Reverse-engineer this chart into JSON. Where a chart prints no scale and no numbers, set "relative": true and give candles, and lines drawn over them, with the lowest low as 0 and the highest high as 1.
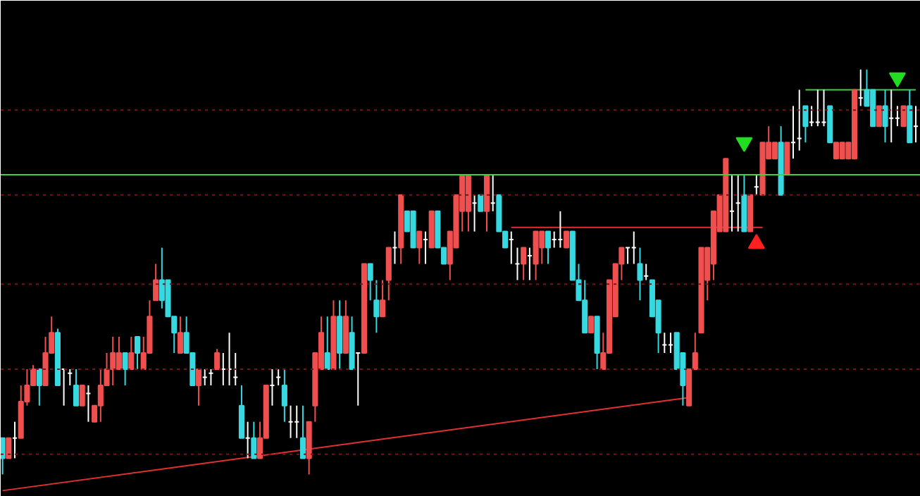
{
  "chart_data": {
    "type": "candlestick",
    "relative": true,
    "colors": [
      "#37d8e0",
      "#ef4f4f",
      "#ffffff",
      "#ef4f4f",
      "#ef4f4f",
      "#ef4f4f",
      "#37d8e0",
      "#ef4f4f",
      "#ef4f4f",
      "#37d8e0",
      "#ffffff",
      "#ffffff",
      "#37d8e0",
      "#ef4f4f",
      "#ffffff",
      "#ef4f4f",
      "#ef4f4f",
      "#ef4f4f",
      "#ef4f4f",
      "#ef4f4f",
      "#37d8e0",
      "#ef4f4f",
      "#37d8e0",
      "#ef4f4f",
      "#ef4f4f",
      "#ef4f4f",
      "#37d8e0",
      "#37d8e0",
      "#37d8e0",
      "#ef4f4f",
      "#37d8e0",
      "#37d8e0",
      "#ef4f4f",
      "#ffffff",
      "#ffffff",
      "#ef4f4f",
      "#ffffff",
      "#ffffff",
      "#ffffff",
      "#37d8e0",
      "#ffffff",
      "#37d8e0",
      "#ef4f4f",
      "#ef4f4f",
      "#ffffff",
      "#ffffff",
      "#37d8e0",
      "#ffffff",
      "#ffffff",
      "#37d8e0",
      "#ef4f4f",
      "#ef4f4f",
      "#ef4f4f",
      "#37d8e0",
      "#ef4f4f",
      "#37d8e0",
      "#ef4f4f",
      "#37d8e0",
      "#ffffff",
      "#ef4f4f",
      "#37d8e0",
      "#37d8e0",
      "#ef4f4f",
      "#ef4f4f",
      "#ffffff",
      "#ef4f4f",
      "#37d8e0",
      "#37d8e0",
      "#ef4f4f",
      "#ffffff",
      "#ef4f4f",
      "#37d8e0",
      "#37d8e0",
      "#ef4f4f",
      "#ef4f4f",
      "#ef4f4f",
      "#ef4f4f",
      "#ffffff",
      "#37d8e0",
      "#ef4f4f",
      "#ffffff",
      "#37d8e0",
      "#37d8e0",
      "#ffffff",
      "#ffffff",
      "#ef4f4f",
      "#ffffff",
      "#ef4f4f",
      "#ef4f4f",
      "#37d8e0",
      "#ffffff",
      "#ffffff",
      "#ef4f4f",
      "#37d8e0",
      "#37d8e0",
      "#37d8e0",
      "#ef4f4f",
      "#37d8e0",
      "#ef4f4f",
      "#ef4f4f",
      "#ef4f4f",
      "#ef4f4f",
      "#ffffff",
      "#ffffff",
      "#37d8e0",
      "#ffffff",
      "#37d8e0",
      "#37d8e0",
      "#ffffff",
      "#ffffff",
      "#37d8e0",
      "#37d8e0",
      "#ef4f4f",
      "#ef4f4f",
      "#ef4f4f",
      "#ef4f4f",
      "#ef4f4f",
      "#ef4f4f",
      "#ef4f4f",
      "#ffffff",
      "#ffffff",
      "#37d8e0",
      "#ef4f4f",
      "#ffffff",
      "#ef4f4f",
      "#ef4f4f",
      "#ef4f4f",
      "#37d8e0",
      "#ef4f4f",
      "#ffffff",
      "#ffffff",
      "#37d8e0",
      "#ffffff",
      "#ffffff",
      "#ffffff",
      "#37d8e0",
      "#ef4f4f",
      "#ef4f4f",
      "#ef4f4f",
      "#ef4f4f",
      "#ffffff",
      "#37d8e0",
      "#37d8e0",
      "#ef4f4f",
      "#37d8e0",
      "#ffffff",
      "#ffffff",
      "#ef4f4f",
      "#37d8e0",
      "#ffffff"
    ],
    "categories": [
      null,
      null,
      null,
      null,
      null,
      null,
      null,
      null,
      null,
      null,
      null,
      null,
      null,
      null,
      null,
      null,
      null,
      null,
      null,
      null,
      null,
      null,
      null,
      null,
      null,
      null,
      null,
      null,
      null,
      null,
      null,
      null,
      null,
      null,
      null,
      null,
      null,
      null,
      null,
      null,
      null,
      null,
      null,
      null,
      null,
      null,
      null,
      null,
      null,
      null,
      null,
      null,
      null,
      null,
      null,
      null,
      null,
      null,
      null,
      null,
      null,
      null,
      null,
      null,
      null,
      null,
      null,
      null,
      null,
      null,
      null,
      null,
      null,
      null,
      null,
      null,
      null,
      null,
      null,
      null,
      null,
      null,
      null,
      null,
      null,
      null,
      null,
      null,
      null,
      null,
      null,
      null,
      null,
      null,
      null,
      null,
      null,
      null,
      null,
      null,
      null,
      null,
      null,
      null,
      null,
      null,
      null,
      null,
      null,
      null,
      null,
      null,
      null,
      null,
      null,
      null,
      null,
      null,
      null,
      null,
      null,
      null,
      null,
      null,
      null,
      null,
      null,
      null,
      null,
      null,
      null,
      null,
      null,
      null,
      null,
      null,
      null,
      null,
      null,
      null,
      null,
      null,
      null,
      null,
      null,
      null,
      null,
      null,
      null,
      null
    ],
    "ohlc": [
      [
        0.09,
        0.09,
        0,
        0.04
      ],
      [
        0.04,
        0.09,
        0.04,
        0.09
      ],
      [
        0.09,
        0.13,
        0.04,
        0.09
      ],
      [
        0.09,
        0.22,
        0.09,
        0.18
      ],
      [
        0.18,
        0.26,
        0.17,
        0.22
      ],
      [
        0.22,
        0.27,
        0.22,
        0.26
      ],
      [
        0.26,
        0.26,
        0.17,
        0.22
      ],
      [
        0.22,
        0.34,
        0.22,
        0.3
      ],
      [
        0.3,
        0.39,
        0.3,
        0.35
      ],
      [
        0.35,
        0.36,
        0.22,
        0.22
      ],
      [
        0.26,
        0.26,
        0.17,
        0.26
      ],
      [
        0.25,
        0.26,
        0.22,
        0.25
      ],
      [
        0.22,
        0.26,
        0.17,
        0.17
      ],
      [
        0.17,
        0.22,
        0.17,
        0.22
      ],
      [
        0.2,
        0.22,
        0.13,
        0.2
      ],
      [
        0.13,
        0.17,
        0.13,
        0.17
      ],
      [
        0.17,
        0.26,
        0.13,
        0.22
      ],
      [
        0.22,
        0.3,
        0.22,
        0.26
      ],
      [
        0.26,
        0.34,
        0.22,
        0.3
      ],
      [
        0.26,
        0.34,
        0.26,
        0.3
      ],
      [
        0.3,
        0.3,
        0.22,
        0.26
      ],
      [
        0.26,
        0.34,
        0.26,
        0.3
      ],
      [
        0.34,
        0.34,
        0.26,
        0.3
      ],
      [
        0.26,
        0.34,
        0.26,
        0.3
      ],
      [
        0.3,
        0.43,
        0.3,
        0.39
      ],
      [
        0.43,
        0.52,
        0.43,
        0.48
      ],
      [
        0.48,
        0.56,
        0.41,
        0.43
      ],
      [
        0.48,
        0.48,
        0.39,
        0.39
      ],
      [
        0.39,
        0.39,
        0.3,
        0.35
      ],
      [
        0.3,
        0.39,
        0.3,
        0.35
      ],
      [
        0.35,
        0.39,
        0.3,
        0.3
      ],
      [
        0.3,
        0.3,
        0.22,
        0.22
      ],
      [
        0.22,
        0.26,
        0.17,
        0.26
      ],
      [
        0.24,
        0.26,
        0.22,
        0.24
      ],
      [
        0.25,
        0.26,
        0.22,
        0.25
      ],
      [
        0.26,
        0.31,
        0.26,
        0.3
      ],
      [
        0.26,
        0.3,
        0.22,
        0.26
      ],
      [
        0.26,
        0.35,
        0.22,
        0.26
      ],
      [
        0.24,
        0.3,
        0.22,
        0.24
      ],
      [
        0.17,
        0.22,
        0.09,
        0.09
      ],
      [
        0.09,
        0.13,
        0.04,
        0.09
      ],
      [
        0.09,
        0.13,
        0.04,
        0.04
      ],
      [
        0.04,
        0.13,
        0.04,
        0.09
      ],
      [
        0.09,
        0.22,
        0.09,
        0.22
      ],
      [
        0.22,
        0.26,
        0.17,
        0.22
      ],
      [
        0.24,
        0.26,
        0.22,
        0.24
      ],
      [
        0.22,
        0.26,
        0.13,
        0.17
      ],
      [
        0.13,
        0.17,
        0.09,
        0.13
      ],
      [
        0.13,
        0.17,
        0.09,
        0.13
      ],
      [
        0.09,
        0.17,
        0.04,
        0.04
      ],
      [
        0.04,
        0.13,
        0,
        0.13
      ],
      [
        0.17,
        0.3,
        0.13,
        0.3
      ],
      [
        0.26,
        0.39,
        0.26,
        0.35
      ],
      [
        0.3,
        0.39,
        0.26,
        0.26
      ],
      [
        0.26,
        0.43,
        0.26,
        0.39
      ],
      [
        0.39,
        0.43,
        0.26,
        0.3
      ],
      [
        0.3,
        0.43,
        0.3,
        0.39
      ],
      [
        0.35,
        0.39,
        0.26,
        0.26
      ],
      [
        0.3,
        0.3,
        0.17,
        0.3
      ],
      [
        0.3,
        0.52,
        0.3,
        0.52
      ],
      [
        0.52,
        0.52,
        0.43,
        0.48
      ],
      [
        0.43,
        0.48,
        0.35,
        0.39
      ],
      [
        0.39,
        0.48,
        0.39,
        0.43
      ],
      [
        0.48,
        0.56,
        0.43,
        0.56
      ],
      [
        0.56,
        0.6,
        0.52,
        0.56
      ],
      [
        0.56,
        0.69,
        0.52,
        0.69
      ],
      [
        0.65,
        0.65,
        0.6,
        0.6
      ],
      [
        0.65,
        0.65,
        0.56,
        0.56
      ],
      [
        0.56,
        0.6,
        0.52,
        0.6
      ],
      [
        0.58,
        0.6,
        0.52,
        0.58
      ],
      [
        0.56,
        0.65,
        0.56,
        0.65
      ],
      [
        0.65,
        0.65,
        0.56,
        0.56
      ],
      [
        0.56,
        0.56,
        0.52,
        0.52
      ],
      [
        0.52,
        0.6,
        0.48,
        0.6
      ],
      [
        0.56,
        0.69,
        0.56,
        0.69
      ],
      [
        0.65,
        0.74,
        0.6,
        0.74
      ],
      [
        0.65,
        0.74,
        0.6,
        0.74
      ],
      [
        0.67,
        0.69,
        0.6,
        0.67
      ],
      [
        0.69,
        0.69,
        0.65,
        0.65
      ],
      [
        0.65,
        0.74,
        0.6,
        0.74
      ],
      [
        0.67,
        0.74,
        0.65,
        0.67
      ],
      [
        0.69,
        0.69,
        0.6,
        0.6
      ],
      [
        0.6,
        0.6,
        0.56,
        0.56
      ],
      [
        0.58,
        0.6,
        0.52,
        0.58
      ],
      [
        0.52,
        0.56,
        0.48,
        0.52
      ],
      [
        0.52,
        0.56,
        0.48,
        0.56
      ],
      [
        0.54,
        0.56,
        0.48,
        0.54
      ],
      [
        0.52,
        0.6,
        0.48,
        0.6
      ],
      [
        0.56,
        0.6,
        0.52,
        0.6
      ],
      [
        0.6,
        0.6,
        0.52,
        0.56
      ],
      [
        0.58,
        0.6,
        0.56,
        0.58
      ],
      [
        0.58,
        0.65,
        0.56,
        0.58
      ],
      [
        0.56,
        0.6,
        0.56,
        0.6
      ],
      [
        0.6,
        0.6,
        0.48,
        0.48
      ],
      [
        0.48,
        0.52,
        0.43,
        0.43
      ],
      [
        0.43,
        0.48,
        0.35,
        0.35
      ],
      [
        0.35,
        0.39,
        0.35,
        0.39
      ],
      [
        0.39,
        0.39,
        0.26,
        0.3
      ],
      [
        0.26,
        0.35,
        0.26,
        0.3
      ],
      [
        0.3,
        0.48,
        0.3,
        0.48
      ],
      [
        0.39,
        0.52,
        0.39,
        0.52
      ],
      [
        0.52,
        0.56,
        0.48,
        0.56
      ],
      [
        0.56,
        0.56,
        0.52,
        0.56
      ],
      [
        0.56,
        0.6,
        0.52,
        0.56
      ],
      [
        0.52,
        0.56,
        0.43,
        0.48
      ],
      [
        0.49,
        0.52,
        0.48,
        0.49
      ],
      [
        0.48,
        0.48,
        0.39,
        0.39
      ],
      [
        0.43,
        0.43,
        0.3,
        0.35
      ],
      [
        0.32,
        0.35,
        0.3,
        0.32
      ],
      [
        0.32,
        0.35,
        0.3,
        0.32
      ],
      [
        0.35,
        0.35,
        0.26,
        0.26
      ],
      [
        0.3,
        0.3,
        0.17,
        0.22
      ],
      [
        0.17,
        0.26,
        0.17,
        0.26
      ],
      [
        0.26,
        0.35,
        0.26,
        0.3
      ],
      [
        0.35,
        0.56,
        0.35,
        0.56
      ],
      [
        0.48,
        0.56,
        0.43,
        0.56
      ],
      [
        0.52,
        0.65,
        0.48,
        0.65
      ],
      [
        0.6,
        0.69,
        0.6,
        0.69
      ],
      [
        0.6,
        0.78,
        0.6,
        0.78
      ],
      [
        0.65,
        0.74,
        0.6,
        0.65
      ],
      [
        0.67,
        0.74,
        0.6,
        0.67
      ],
      [
        0.69,
        0.74,
        0.6,
        0.6
      ],
      [
        0.6,
        0.69,
        0.6,
        0.69
      ],
      [
        0.71,
        0.74,
        0.69,
        0.71
      ],
      [
        0.69,
        0.82,
        0.69,
        0.82
      ],
      [
        0.78,
        0.86,
        0.78,
        0.82
      ],
      [
        0.78,
        0.82,
        0.78,
        0.82
      ],
      [
        0.82,
        0.86,
        0.69,
        0.69
      ],
      [
        0.74,
        0.82,
        0.74,
        0.82
      ],
      [
        0.82,
        0.91,
        0.78,
        0.82
      ],
      [
        0.83,
        0.95,
        0.8,
        0.83
      ],
      [
        0.91,
        0.91,
        0.82,
        0.86
      ],
      [
        0.87,
        0.91,
        0.86,
        0.87
      ],
      [
        0.87,
        0.95,
        0.86,
        0.87
      ],
      [
        0.87,
        0.95,
        0.86,
        0.87
      ],
      [
        0.91,
        0.91,
        0.82,
        0.82
      ],
      [
        0.78,
        0.82,
        0.78,
        0.82
      ],
      [
        0.78,
        0.82,
        0.78,
        0.82
      ],
      [
        0.78,
        0.82,
        0.78,
        0.82
      ],
      [
        0.78,
        0.95,
        0.78,
        0.95
      ],
      [
        0.93,
        1,
        0.91,
        0.93
      ],
      [
        0.95,
        1,
        0.91,
        0.91
      ],
      [
        0.95,
        0.95,
        0.86,
        0.86
      ],
      [
        0.86,
        0.91,
        0.86,
        0.91
      ],
      [
        0.91,
        0.95,
        0.82,
        0.86
      ],
      [
        0.88,
        0.95,
        0.82,
        0.88
      ],
      [
        0.88,
        0.91,
        0.86,
        0.88
      ],
      [
        0.86,
        0.91,
        0.86,
        0.91
      ],
      [
        0.91,
        0.95,
        0.82,
        0.82
      ],
      [
        0.86,
        0.91,
        0.82,
        0.86
      ]
    ],
    "series": [
      {
        "type": "line",
        "color": "#e03030",
        "values": [
          -0.04,
          null,
          null,
          null,
          null,
          null,
          null,
          null,
          null,
          null,
          null,
          null,
          null,
          null,
          null,
          null,
          null,
          null,
          null,
          null,
          null,
          null,
          null,
          null,
          null,
          null,
          null,
          null,
          null,
          null,
          null,
          null,
          null,
          null,
          null,
          null,
          null,
          null,
          null,
          null,
          null,
          null,
          null,
          null,
          null,
          null,
          null,
          null,
          null,
          null,
          null,
          null,
          null,
          null,
          null,
          null,
          null,
          null,
          null,
          null,
          null,
          null,
          null,
          null,
          null,
          null,
          null,
          null,
          null,
          null,
          null,
          null,
          null,
          null,
          null,
          null,
          null,
          null,
          null,
          null,
          null,
          null,
          null,
          null,
          null,
          null,
          null,
          null,
          null,
          null,
          null,
          null,
          null,
          null,
          null,
          null,
          null,
          null,
          null,
          null,
          null,
          null,
          null,
          null,
          null,
          null,
          null,
          null,
          null,
          null,
          null,
          null,
          0.19,
          null,
          null,
          null,
          null,
          null,
          null,
          null,
          null,
          null,
          null,
          null,
          null,
          null,
          null,
          null,
          null,
          null,
          null,
          null,
          null,
          null,
          null,
          null,
          null,
          null,
          null,
          null,
          null,
          null,
          null,
          null,
          null,
          null,
          null,
          null,
          null,
          null
        ]
      },
      {
        "type": "line",
        "color": "#e03030",
        "values": [
          null,
          null,
          null,
          null,
          null,
          null,
          null,
          null,
          null,
          null,
          null,
          null,
          null,
          null,
          null,
          null,
          null,
          null,
          null,
          null,
          null,
          null,
          null,
          null,
          null,
          null,
          null,
          null,
          null,
          null,
          null,
          null,
          null,
          null,
          null,
          null,
          null,
          null,
          null,
          null,
          null,
          null,
          null,
          null,
          null,
          null,
          null,
          null,
          null,
          null,
          null,
          null,
          null,
          null,
          null,
          null,
          null,
          null,
          null,
          null,
          null,
          null,
          null,
          null,
          null,
          null,
          null,
          null,
          null,
          null,
          null,
          null,
          null,
          null,
          null,
          null,
          null,
          null,
          null,
          null,
          null,
          null,
          null,
          0.61,
          null,
          null,
          null,
          null,
          null,
          null,
          null,
          null,
          null,
          null,
          null,
          null,
          null,
          null,
          null,
          null,
          null,
          null,
          null,
          null,
          null,
          null,
          null,
          null,
          null,
          null,
          null,
          null,
          null,
          null,
          null,
          null,
          null,
          null,
          null,
          null,
          null,
          null,
          null,
          null,
          0.61,
          null,
          null,
          null,
          null,
          null,
          null,
          null,
          null,
          null,
          null,
          null,
          null,
          null,
          null,
          null,
          null,
          null,
          null,
          null,
          null,
          null,
          null,
          null,
          null,
          null
        ]
      },
      {
        "type": "line",
        "color": "#3ad43a",
        "values": [
          null,
          null,
          null,
          null,
          null,
          null,
          null,
          null,
          null,
          null,
          null,
          null,
          null,
          null,
          null,
          null,
          null,
          null,
          null,
          null,
          null,
          null,
          null,
          null,
          null,
          null,
          null,
          null,
          null,
          null,
          null,
          null,
          null,
          null,
          null,
          null,
          null,
          null,
          null,
          null,
          null,
          null,
          null,
          null,
          null,
          null,
          null,
          null,
          null,
          null,
          null,
          null,
          null,
          null,
          null,
          null,
          null,
          null,
          null,
          null,
          null,
          null,
          null,
          null,
          null,
          null,
          null,
          null,
          null,
          null,
          null,
          null,
          null,
          null,
          null,
          null,
          null,
          null,
          null,
          null,
          null,
          null,
          null,
          null,
          null,
          null,
          null,
          null,
          null,
          null,
          null,
          null,
          null,
          null,
          null,
          null,
          null,
          null,
          null,
          null,
          null,
          null,
          null,
          null,
          null,
          null,
          null,
          null,
          null,
          null,
          null,
          null,
          null,
          null,
          null,
          null,
          null,
          null,
          null,
          null,
          null,
          null,
          null,
          null,
          null,
          null,
          null,
          null,
          null,
          null,
          null,
          0.95,
          null,
          null,
          null,
          null,
          null,
          null,
          null,
          null,
          null,
          null,
          null,
          null,
          null,
          null,
          null,
          null,
          null,
          0.95
        ]
      },
      {
        "type": "scatter",
        "color": "#ff2020",
        "marker": "triangle",
        "values": [
          null,
          null,
          null,
          null,
          null,
          null,
          null,
          null,
          null,
          null,
          null,
          null,
          null,
          null,
          null,
          null,
          null,
          null,
          null,
          null,
          null,
          null,
          null,
          null,
          null,
          null,
          null,
          null,
          null,
          null,
          null,
          null,
          null,
          null,
          null,
          null,
          null,
          null,
          null,
          null,
          null,
          null,
          null,
          null,
          null,
          null,
          null,
          null,
          null,
          null,
          null,
          null,
          null,
          null,
          null,
          null,
          null,
          null,
          null,
          null,
          null,
          null,
          null,
          null,
          null,
          null,
          null,
          null,
          null,
          null,
          null,
          null,
          null,
          null,
          null,
          null,
          null,
          null,
          null,
          null,
          null,
          null,
          null,
          null,
          null,
          null,
          null,
          null,
          null,
          null,
          null,
          null,
          null,
          null,
          null,
          null,
          null,
          null,
          null,
          null,
          null,
          null,
          null,
          null,
          null,
          null,
          null,
          null,
          null,
          null,
          null,
          null,
          null,
          null,
          null,
          null,
          null,
          null,
          null,
          null,
          null,
          null,
          null,
          0.57,
          null,
          null,
          null,
          null,
          null,
          null,
          null,
          null,
          null,
          null,
          null,
          null,
          null,
          null,
          null,
          null,
          null,
          null,
          null,
          null,
          null,
          null,
          null,
          null,
          null,
          null
        ]
      },
      {
        "type": "scatter",
        "color": "#22dd22",
        "marker": "triangle_down",
        "values": [
          null,
          null,
          null,
          null,
          null,
          null,
          null,
          null,
          null,
          null,
          null,
          null,
          null,
          null,
          null,
          null,
          null,
          null,
          null,
          null,
          null,
          null,
          null,
          null,
          null,
          null,
          null,
          null,
          null,
          null,
          null,
          null,
          null,
          null,
          null,
          null,
          null,
          null,
          null,
          null,
          null,
          null,
          null,
          null,
          null,
          null,
          null,
          null,
          null,
          null,
          null,
          null,
          null,
          null,
          null,
          null,
          null,
          null,
          null,
          null,
          null,
          null,
          null,
          null,
          null,
          null,
          null,
          null,
          null,
          null,
          null,
          null,
          null,
          null,
          null,
          null,
          null,
          null,
          null,
          null,
          null,
          null,
          null,
          null,
          null,
          null,
          null,
          null,
          null,
          null,
          null,
          null,
          null,
          null,
          null,
          null,
          null,
          null,
          null,
          null,
          null,
          null,
          null,
          null,
          null,
          null,
          null,
          null,
          null,
          null,
          null,
          null,
          null,
          null,
          null,
          null,
          null,
          null,
          null,
          null,
          null,
          0.82,
          null,
          null,
          null,
          null,
          null,
          null,
          null,
          null,
          null,
          null,
          null,
          null,
          null,
          null,
          null,
          null,
          null,
          null,
          null,
          null,
          null,
          null,
          null,
          null,
          0.98,
          null,
          null,
          null
        ]
      }
    ],
    "ref_lines": [
      {
        "axis": "y",
        "value": 0.74,
        "color": "#3ad43a"
      },
      {
        "axis": "y",
        "value": 0.05,
        "color": "#7a1414",
        "line_style": "dashed"
      },
      {
        "axis": "y",
        "value": 0.26,
        "color": "#7a1414",
        "line_style": "dashed"
      },
      {
        "axis": "y",
        "value": 0.47,
        "color": "#7a1414",
        "line_style": "dashed"
      },
      {
        "axis": "y",
        "value": 0.69,
        "color": "#7a1414",
        "line_style": "dashed"
      },
      {
        "axis": "y",
        "value": 0.9,
        "color": "#7a1414",
        "line_style": "dashed"
      }
    ]
  }
}
